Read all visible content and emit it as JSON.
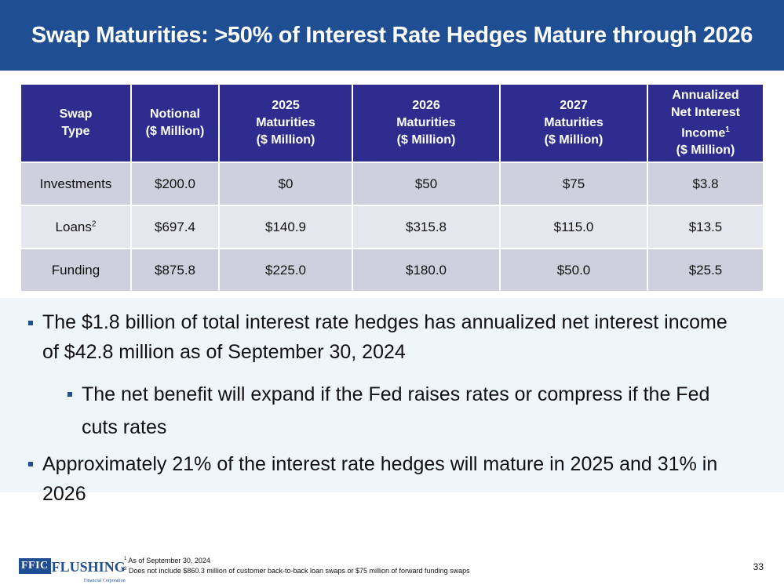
{
  "title": "Swap Maturities: >50% of Interest Rate Hedges Mature through 2026",
  "table": {
    "headers": [
      {
        "lines": [
          "Swap",
          "Type"
        ]
      },
      {
        "lines": [
          "Notional",
          "($ Million)"
        ]
      },
      {
        "lines": [
          "2025",
          "Maturities",
          "($ Million)"
        ]
      },
      {
        "lines": [
          "2026",
          "Maturities",
          "($ Million)"
        ]
      },
      {
        "lines": [
          "2027",
          "Maturities",
          "($ Million)"
        ]
      },
      {
        "lines": [
          "Annualized",
          "Net Interest",
          "Income",
          "($ Million)"
        ],
        "sup": "1"
      }
    ],
    "rows": [
      {
        "type": "Investments",
        "sup": "",
        "notional": "$200.0",
        "m2025": "$0",
        "m2026": "$50",
        "m2027": "$75",
        "nii": "$3.8"
      },
      {
        "type": "Loans",
        "sup": "2",
        "notional": "$697.4",
        "m2025": "$140.9",
        "m2026": "$315.8",
        "m2027": "$115.0",
        "nii": "$13.5"
      },
      {
        "type": "Funding",
        "sup": "",
        "notional": "$875.8",
        "m2025": "$225.0",
        "m2026": "$180.0",
        "m2027": "$50.0",
        "nii": "$25.5"
      }
    ]
  },
  "bullets": {
    "b1": "The $1.8 billion of total interest rate hedges has annualized net interest income of $42.8 million as of September 30, 2024",
    "b2": "The net benefit will expand if the Fed raises rates or compress if the Fed cuts rates",
    "b3": "Approximately 21% of the interest rate hedges will mature in 2025 and 31% in 2026"
  },
  "logo": {
    "box": "FFIC",
    "name": "FLUSHING",
    "sub": "Financial Corporation"
  },
  "footnotes": {
    "f1_sup": "1",
    "f1": "As of September 30, 2024",
    "f2_sup": "2",
    "f2": "Does not include $860.3 million of customer back-to-back loan swaps or $75 million of forward funding swaps"
  },
  "page_number": "33",
  "colors": {
    "title_bg": "#1f4f92",
    "header_bg": "#2e2d8f",
    "row_a": "#cfcfdd",
    "row_b": "#e6e6ee",
    "bullet_bg": "#eef6f9"
  }
}
